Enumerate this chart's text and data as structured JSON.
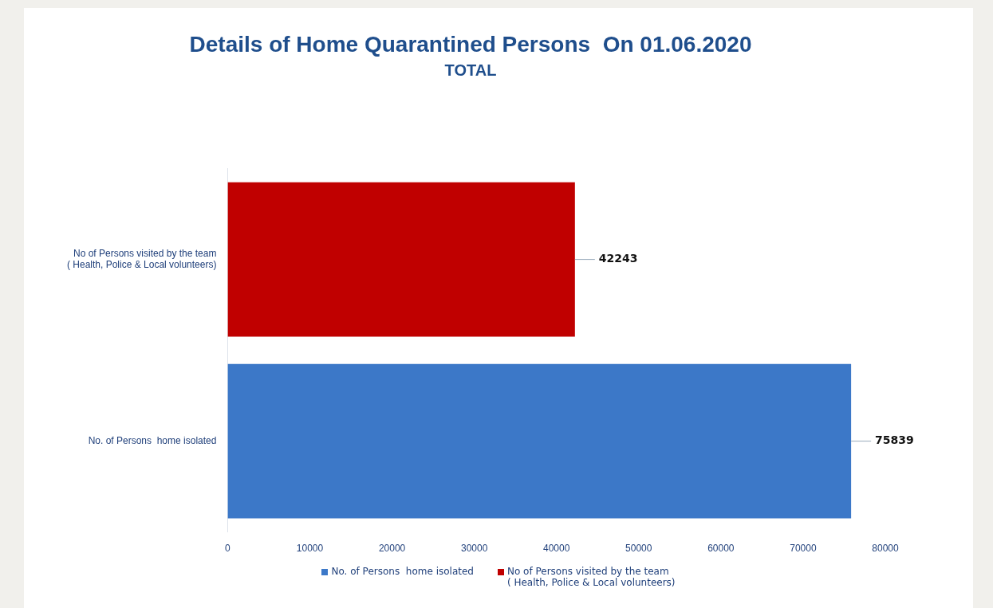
{
  "chart_data": {
    "type": "bar",
    "orientation": "horizontal",
    "title": "Details of Home Quarantined Persons  On 01.06.2020",
    "subtitle": "TOTAL",
    "categories": [
      "No of Persons visited by the team\n( Health, Police & Local volunteers)",
      "No. of Persons  home isolated"
    ],
    "series": [
      {
        "name": "No. of Persons  home isolated",
        "color": "#3c78c8",
        "values": [
          null,
          75839
        ]
      },
      {
        "name": "No of Persons visited by the team\n( Health, Police & Local volunteers)",
        "color": "#c00000",
        "values": [
          42243,
          null
        ]
      }
    ],
    "xlim": [
      0,
      80000
    ],
    "xticks": [
      0,
      10000,
      20000,
      30000,
      40000,
      50000,
      60000,
      70000,
      80000
    ],
    "grid": false,
    "legend": "bottom",
    "data_labels": true
  }
}
